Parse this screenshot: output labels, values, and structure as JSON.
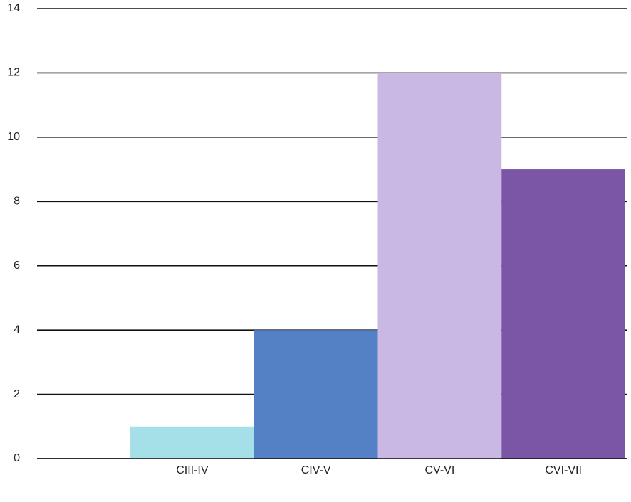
{
  "chart_data": {
    "type": "bar",
    "categories": [
      "CIII-IV",
      "CIV-V",
      "CV-VI",
      "CVI-VII"
    ],
    "values": [
      1,
      4,
      12,
      9
    ],
    "colors": [
      "#a5e0e8",
      "#5480c5",
      "#c9b8e3",
      "#7b55a6"
    ],
    "ylim": [
      0,
      14
    ],
    "yticks": [
      0,
      2,
      4,
      6,
      8,
      10,
      12,
      14
    ],
    "grid": true
  }
}
